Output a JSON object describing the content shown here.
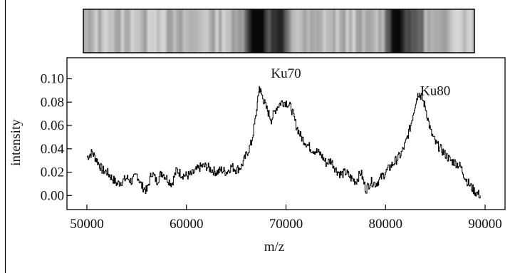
{
  "chart_data": {
    "type": "line",
    "title": "",
    "xlabel": "m/z",
    "ylabel": "intensity",
    "xlim": [
      48000,
      92000
    ],
    "ylim": [
      -0.012,
      0.118
    ],
    "xticks": [
      50000,
      60000,
      70000,
      80000,
      90000
    ],
    "xtick_labels": [
      "50000",
      "60000",
      "70000",
      "80000",
      "90000"
    ],
    "yticks": [
      0.0,
      0.02,
      0.04,
      0.06,
      0.08,
      0.1
    ],
    "ytick_labels": [
      "0.00",
      "0.02",
      "0.04",
      "0.06",
      "0.08",
      "0.10"
    ],
    "grid": false,
    "legend": "none",
    "line_color": "#000000",
    "annotations": [
      {
        "text": "Ku70",
        "x": 70000,
        "y": 0.101
      },
      {
        "text": "Ku80",
        "x": 85000,
        "y": 0.086
      }
    ],
    "series": [
      {
        "x": [
          50000,
          50500,
          51000,
          51500,
          52000,
          52500,
          53000,
          53500,
          54000,
          54500,
          55000,
          55500,
          56000,
          56500,
          57000,
          57500,
          58000,
          58500,
          59000,
          59500,
          60000,
          60500,
          61000,
          61500,
          62000,
          62500,
          63000,
          63500,
          64000,
          64500,
          65000,
          65500,
          66000,
          66500,
          67000,
          67300,
          67600,
          68000,
          68500,
          69000,
          69500,
          70000,
          70500,
          71000,
          71500,
          72000,
          72500,
          73000,
          73500,
          74000,
          74500,
          75000,
          75500,
          76000,
          76500,
          77000,
          77500,
          78000,
          78500,
          79000,
          79500,
          80000,
          80500,
          81000,
          81500,
          82000,
          82500,
          83000,
          83300,
          83600,
          84000,
          84500,
          85000,
          85500,
          86000,
          86500,
          87000,
          87500,
          88000,
          88500,
          89000,
          89500
        ],
        "values": [
          0.033,
          0.037,
          0.03,
          0.022,
          0.02,
          0.015,
          0.01,
          0.012,
          0.015,
          0.012,
          0.018,
          0.008,
          0.004,
          0.02,
          0.012,
          0.02,
          0.015,
          0.01,
          0.022,
          0.018,
          0.017,
          0.018,
          0.022,
          0.025,
          0.025,
          0.022,
          0.02,
          0.022,
          0.02,
          0.025,
          0.022,
          0.025,
          0.035,
          0.045,
          0.07,
          0.093,
          0.085,
          0.075,
          0.065,
          0.075,
          0.08,
          0.08,
          0.075,
          0.06,
          0.05,
          0.045,
          0.04,
          0.038,
          0.035,
          0.028,
          0.03,
          0.022,
          0.018,
          0.02,
          0.015,
          0.012,
          0.02,
          0.005,
          0.012,
          0.01,
          0.015,
          0.02,
          0.025,
          0.03,
          0.035,
          0.045,
          0.06,
          0.08,
          0.088,
          0.085,
          0.075,
          0.055,
          0.045,
          0.04,
          0.035,
          0.03,
          0.028,
          0.025,
          0.015,
          0.008,
          0.003,
          0.0
        ]
      }
    ],
    "gel_strip": {
      "x_range": [
        48000,
        92000
      ],
      "dark_bands": [
        {
          "center": 67500,
          "intensity": 0.95,
          "width": 1800
        },
        {
          "center": 70000,
          "intensity": 0.55,
          "width": 1400
        },
        {
          "center": 83300,
          "intensity": 0.95,
          "width": 1500
        },
        {
          "center": 85500,
          "intensity": 0.4,
          "width": 1200
        }
      ]
    }
  }
}
